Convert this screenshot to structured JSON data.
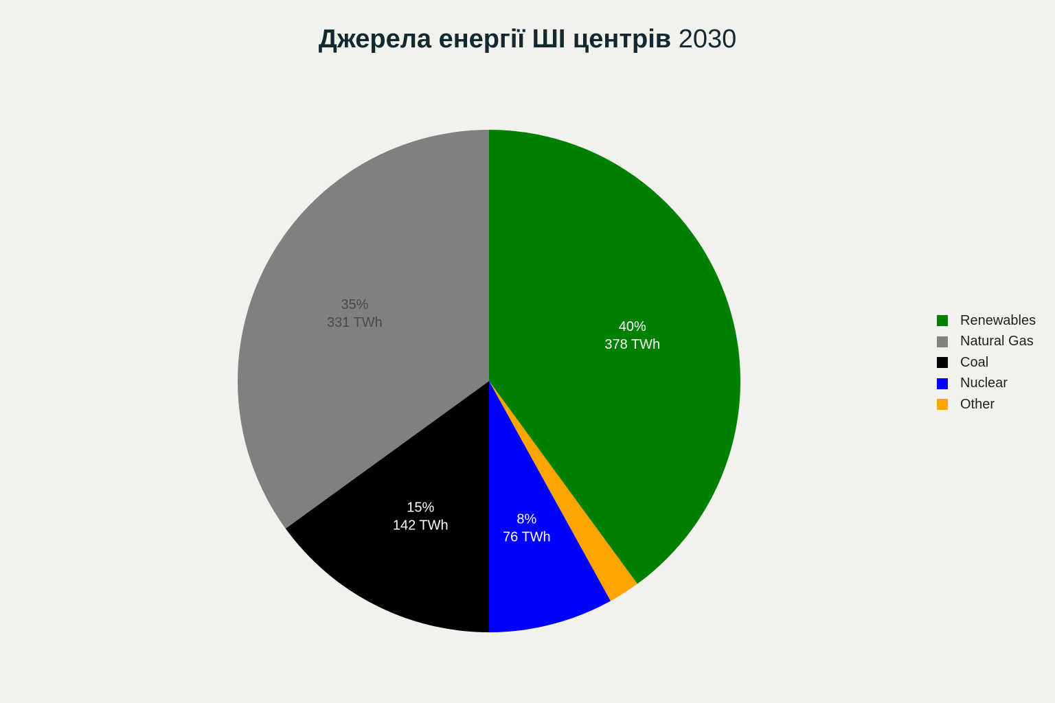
{
  "chart_data": {
    "type": "pie",
    "title": "Джерела енергії ШІ центрів",
    "title_year": "2030",
    "legend_position": "right",
    "slices": [
      {
        "label": "Renewables",
        "value": 378,
        "percent": 40,
        "percent_label": "40%",
        "value_label": "378 TWh",
        "color": "#008000",
        "text_color": "#ffffff"
      },
      {
        "label": "Other",
        "value": 19,
        "percent": 2,
        "percent_label": "",
        "value_label": "",
        "color": "#ffa500",
        "text_color": "#ffffff"
      },
      {
        "label": "Nuclear",
        "value": 76,
        "percent": 8,
        "percent_label": "8%",
        "value_label": "76 TWh",
        "color": "#0000ff",
        "text_color": "#ffffff"
      },
      {
        "label": "Coal",
        "value": 142,
        "percent": 15,
        "percent_label": "15%",
        "value_label": "142 TWh",
        "color": "#000000",
        "text_color": "#ffffff"
      },
      {
        "label": "Natural Gas",
        "value": 331,
        "percent": 35,
        "percent_label": "35%",
        "value_label": "331 TWh",
        "color": "#808080",
        "text_color": "#4a4a4a"
      }
    ],
    "legend": [
      {
        "label": "Renewables",
        "color": "#008000"
      },
      {
        "label": "Natural Gas",
        "color": "#808080"
      },
      {
        "label": "Coal",
        "color": "#000000"
      },
      {
        "label": "Nuclear",
        "color": "#0000ff"
      },
      {
        "label": "Other",
        "color": "#ffa500"
      }
    ]
  }
}
